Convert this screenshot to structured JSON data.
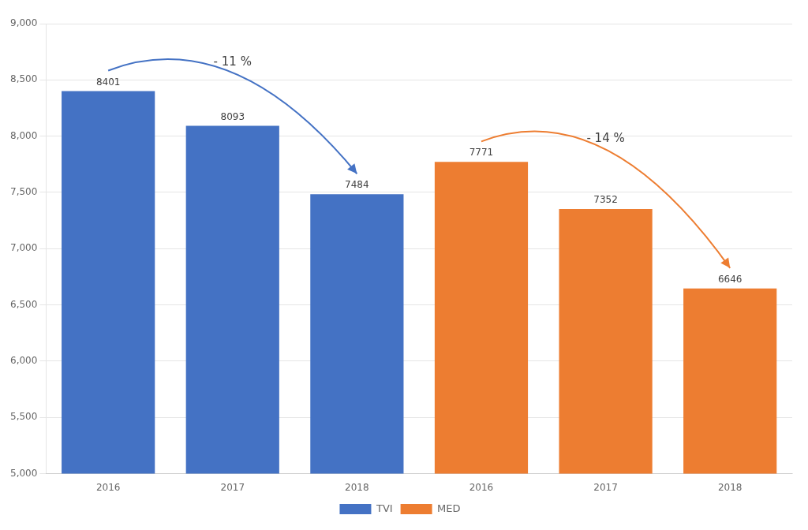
{
  "chart_data": {
    "type": "bar",
    "categories": [
      "2016",
      "2017",
      "2018",
      "2016",
      "2017",
      "2018"
    ],
    "series": [
      {
        "name": "TVI",
        "color": "#4472C4",
        "values": [
          8401,
          8093,
          7484,
          null,
          null,
          null
        ]
      },
      {
        "name": "MED",
        "color": "#ED7D31",
        "values": [
          null,
          null,
          null,
          7771,
          7352,
          6646
        ]
      }
    ],
    "ylim": [
      5000,
      9000
    ],
    "yticks": [
      5000,
      5500,
      6000,
      6500,
      7000,
      7500,
      8000,
      8500,
      9000
    ],
    "grid": true,
    "legend": "bottom",
    "data_labels": true,
    "annotations": [
      "- 11 %",
      "- 14 %"
    ]
  }
}
